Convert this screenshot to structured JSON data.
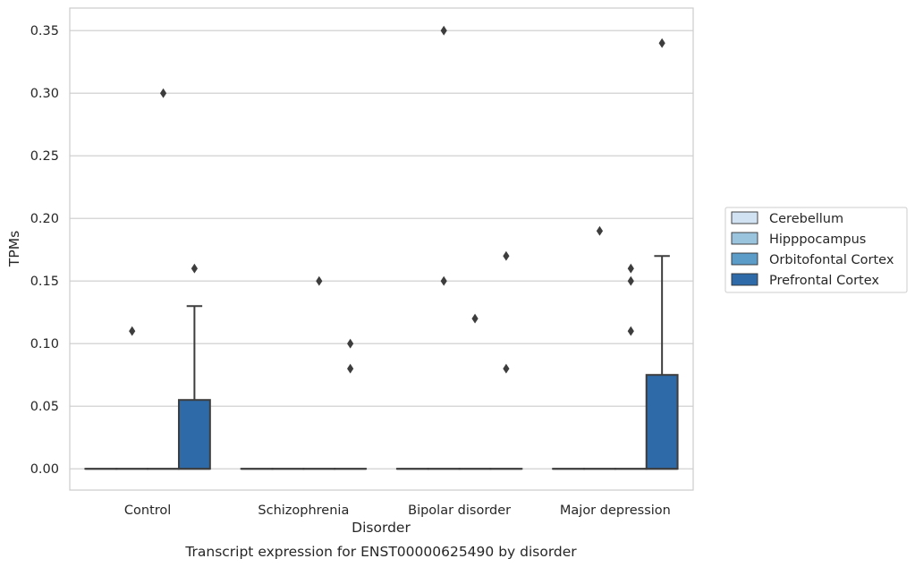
{
  "chart_data": {
    "type": "box",
    "title": "",
    "caption": "Transcript expression for ENST00000625490 by disorder",
    "xlabel": "Disorder",
    "ylabel": "TPMs",
    "ylim": [
      -0.017,
      0.368
    ],
    "yticks": [
      0.0,
      0.05,
      0.1,
      0.15,
      0.2,
      0.25,
      0.3,
      0.35
    ],
    "ytick_labels": [
      "0.00",
      "0.05",
      "0.10",
      "0.15",
      "0.20",
      "0.25",
      "0.30",
      "0.35"
    ],
    "grid": "horizontal",
    "legend_position": "outside-right",
    "categories": [
      "Control",
      "Schizophrenia",
      "Bipolar disorder",
      "Major depression"
    ],
    "series": [
      {
        "name": "Cerebellum",
        "color": "#d1e2f2",
        "boxes": [
          {
            "q1": 0,
            "median": 0,
            "q3": 0,
            "whisker_low": 0,
            "whisker_high": 0,
            "outliers": []
          },
          {
            "q1": 0,
            "median": 0,
            "q3": 0,
            "whisker_low": 0,
            "whisker_high": 0,
            "outliers": []
          },
          {
            "q1": 0,
            "median": 0,
            "q3": 0,
            "whisker_low": 0,
            "whisker_high": 0,
            "outliers": []
          },
          {
            "q1": 0,
            "median": 0,
            "q3": 0,
            "whisker_low": 0,
            "whisker_high": 0,
            "outliers": []
          }
        ]
      },
      {
        "name": "Hipppocampus",
        "color": "#9ac3de",
        "boxes": [
          {
            "q1": 0,
            "median": 0,
            "q3": 0,
            "whisker_low": 0,
            "whisker_high": 0,
            "outliers": [
              0.11
            ]
          },
          {
            "q1": 0,
            "median": 0,
            "q3": 0,
            "whisker_low": 0,
            "whisker_high": 0,
            "outliers": []
          },
          {
            "q1": 0,
            "median": 0,
            "q3": 0,
            "whisker_low": 0,
            "whisker_high": 0,
            "outliers": [
              0.15,
              0.35
            ]
          },
          {
            "q1": 0,
            "median": 0,
            "q3": 0,
            "whisker_low": 0,
            "whisker_high": 0,
            "outliers": [
              0.19
            ]
          }
        ]
      },
      {
        "name": "Orbitofontal Cortex",
        "color": "#5b9cc9",
        "boxes": [
          {
            "q1": 0,
            "median": 0,
            "q3": 0,
            "whisker_low": 0,
            "whisker_high": 0,
            "outliers": [
              0.3
            ]
          },
          {
            "q1": 0,
            "median": 0,
            "q3": 0,
            "whisker_low": 0,
            "whisker_high": 0,
            "outliers": [
              0.15
            ]
          },
          {
            "q1": 0,
            "median": 0,
            "q3": 0,
            "whisker_low": 0,
            "whisker_high": 0,
            "outliers": [
              0.12
            ]
          },
          {
            "q1": 0,
            "median": 0,
            "q3": 0,
            "whisker_low": 0,
            "whisker_high": 0,
            "outliers": [
              0.11,
              0.15,
              0.16
            ]
          }
        ]
      },
      {
        "name": "Prefrontal Cortex",
        "color": "#2d6aa7",
        "boxes": [
          {
            "q1": 0,
            "median": 0,
            "q3": 0.055,
            "whisker_low": 0,
            "whisker_high": 0.13,
            "outliers": [
              0.16
            ]
          },
          {
            "q1": 0,
            "median": 0,
            "q3": 0,
            "whisker_low": 0,
            "whisker_high": 0,
            "outliers": [
              0.08,
              0.1
            ]
          },
          {
            "q1": 0,
            "median": 0,
            "q3": 0,
            "whisker_low": 0,
            "whisker_high": 0,
            "outliers": [
              0.08,
              0.17
            ]
          },
          {
            "q1": 0,
            "median": 0,
            "q3": 0.075,
            "whisker_low": 0,
            "whisker_high": 0.17,
            "outliers": [
              0.34
            ]
          }
        ]
      }
    ]
  },
  "colors": {
    "grid": "#cccccc",
    "frame": "#cccccc",
    "box_edge": "#3d3d3d",
    "outlier": "#3d3d3d",
    "text": "#262626"
  }
}
